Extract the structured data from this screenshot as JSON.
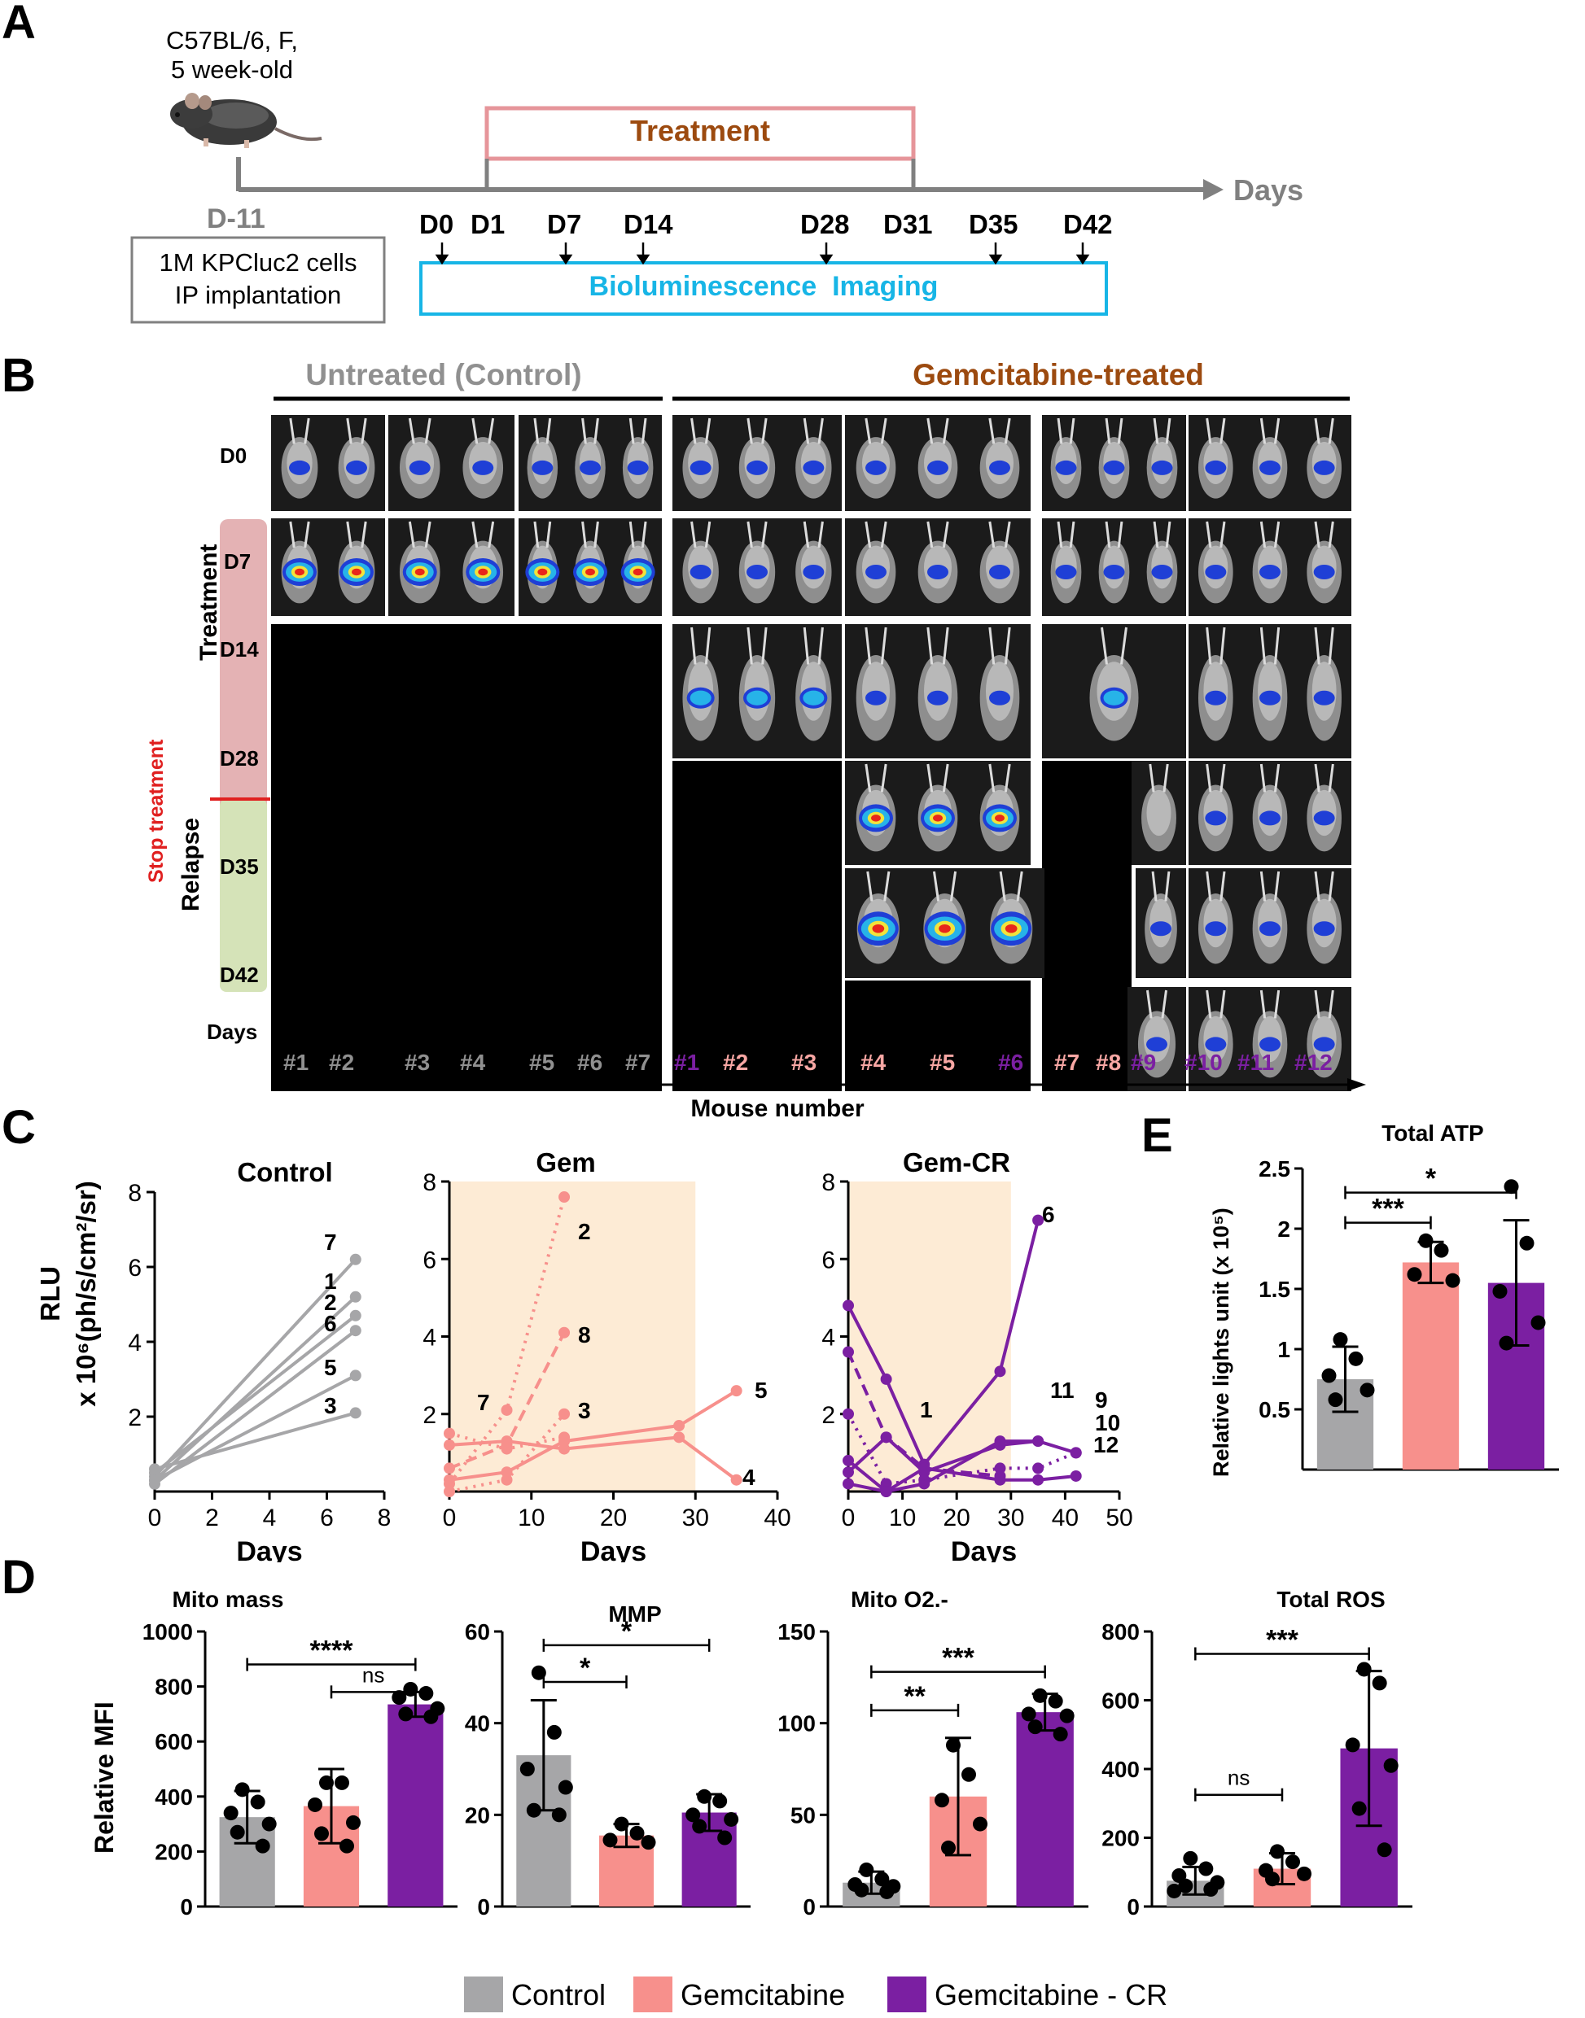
{
  "colors": {
    "control": "#a6a6a8",
    "gem": "#f7908c",
    "gem_light": "#f8a7a4",
    "gem_cr": "#7b1fa2",
    "treatment_label": "#9c4a0f",
    "imaging_blue": "#17b5e6",
    "treatment_box": "#e6959a",
    "stop_red": "#e02020",
    "relapse_green": "#d5e3b8",
    "treatment_pink": "#e4b2b4",
    "shade": "#fdebd5",
    "gray_text": "#808080"
  },
  "panelA": {
    "letter": "A",
    "strain_line1": "C57BL/6, F,",
    "strain_line2": "5 week-old",
    "treatment_label": "Treatment",
    "axis_label": "Days",
    "d_minus": "D-11",
    "implant_line1": "1M KPCluc2 cells",
    "implant_line2": "IP implantation",
    "days": [
      "D0",
      "D1",
      "D7",
      "D14",
      "D28",
      "D31",
      "D35",
      "D42"
    ],
    "imaging_label": "Bioluminescence  Imaging",
    "mouse_icon": "mouse-icon"
  },
  "panelB": {
    "letter": "B",
    "group1": "Untreated (Control)",
    "group2": "Gemcitabine-treated",
    "rows": [
      "D0",
      "D7",
      "D14",
      "D28",
      "D35",
      "D42"
    ],
    "days_label": "Days",
    "treatment_side": "Treatment",
    "relapse_side": "Relapse",
    "stop_label": "Stop treatment",
    "mouse_numbers_control": [
      "#1",
      "#2",
      "#3",
      "#4",
      "#5",
      "#6",
      "#7"
    ],
    "mouse_numbers_gem": [
      {
        "label": "#1",
        "group": "cr"
      },
      {
        "label": "#2",
        "group": "gem"
      },
      {
        "label": "#3",
        "group": "gem"
      },
      {
        "label": "#4",
        "group": "gem"
      },
      {
        "label": "#5",
        "group": "gem"
      },
      {
        "label": "#6",
        "group": "cr"
      },
      {
        "label": "#7",
        "group": "gem"
      },
      {
        "label": "#8",
        "group": "gem"
      },
      {
        "label": "#9",
        "group": "cr"
      },
      {
        "label": "#10",
        "group": "cr"
      },
      {
        "label": "#11",
        "group": "cr"
      },
      {
        "label": "#12",
        "group": "cr"
      }
    ],
    "x_label": "Mouse number"
  },
  "panelC": {
    "letter": "C",
    "ylabel_line1": "RLU",
    "ylabel_line2": "x 10⁶(ph/s/cm²/sr)"
  },
  "panelD": {
    "letter": "D",
    "ylabel": "Relative MFI",
    "legend": [
      "Control",
      "Gemcitabine",
      "Gemcitabine - CR"
    ]
  },
  "panelE": {
    "letter": "E",
    "ylabel": "Relative lights unit (x 10⁵)"
  },
  "chart_data": [
    {
      "id": "C1",
      "type": "line",
      "title": "Control",
      "xlabel": "Days",
      "xlim": [
        0,
        8
      ],
      "xticks": [
        0,
        2,
        4,
        6,
        8
      ],
      "ylim": [
        0,
        8
      ],
      "yticks": [
        2,
        4,
        6,
        8
      ],
      "series": [
        {
          "name": "7",
          "x": [
            0,
            7
          ],
          "y": [
            0.4,
            6.2
          ],
          "style": "solid"
        },
        {
          "name": "1",
          "x": [
            0,
            7
          ],
          "y": [
            0.3,
            5.2
          ],
          "style": "solid"
        },
        {
          "name": "2",
          "x": [
            0,
            7
          ],
          "y": [
            0.5,
            4.7
          ],
          "style": "solid"
        },
        {
          "name": "6",
          "x": [
            0,
            7
          ],
          "y": [
            0.2,
            4.3
          ],
          "style": "solid"
        },
        {
          "name": "5",
          "x": [
            0,
            7
          ],
          "y": [
            0.3,
            3.1
          ],
          "style": "solid"
        },
        {
          "name": "3",
          "x": [
            0,
            7
          ],
          "y": [
            0.6,
            2.1
          ],
          "style": "solid"
        }
      ]
    },
    {
      "id": "C2",
      "type": "line",
      "title": "Gem",
      "xlabel": "Days",
      "xlim": [
        0,
        40
      ],
      "xticks": [
        0,
        10,
        20,
        30,
        40
      ],
      "ylim": [
        0,
        8
      ],
      "yticks": [
        2,
        4,
        6,
        8
      ],
      "shade": [
        0,
        30
      ],
      "series": [
        {
          "name": "2",
          "x": [
            0,
            7,
            14
          ],
          "y": [
            0.2,
            2.1,
            7.6
          ],
          "style": "dotted"
        },
        {
          "name": "8",
          "x": [
            0,
            7,
            14
          ],
          "y": [
            0.6,
            1.2,
            4.1
          ],
          "style": "dashed"
        },
        {
          "name": "3",
          "x": [
            0,
            7,
            14
          ],
          "y": [
            0.0,
            0.3,
            2.0
          ],
          "style": "dotted"
        },
        {
          "name": "7",
          "x": [
            0,
            7,
            14
          ],
          "y": [
            1.5,
            1.1,
            1.4
          ],
          "style": "dotted"
        },
        {
          "name": "5",
          "x": [
            0,
            7,
            14,
            28,
            35
          ],
          "y": [
            0.3,
            0.5,
            1.3,
            1.7,
            2.6
          ],
          "style": "solid"
        },
        {
          "name": "4",
          "x": [
            0,
            7,
            14,
            28,
            35
          ],
          "y": [
            1.2,
            1.3,
            1.1,
            1.4,
            0.3
          ],
          "style": "solid"
        }
      ]
    },
    {
      "id": "C3",
      "type": "line",
      "title": "Gem-CR",
      "xlabel": "Days",
      "xlim": [
        0,
        50
      ],
      "xticks": [
        0,
        10,
        20,
        30,
        40,
        50
      ],
      "ylim": [
        0,
        8
      ],
      "yticks": [
        2,
        4,
        6,
        8
      ],
      "shade": [
        0,
        30
      ],
      "series": [
        {
          "name": "6",
          "x": [
            0,
            7,
            14,
            28,
            35
          ],
          "y": [
            4.8,
            2.9,
            0.7,
            3.1,
            7.0
          ],
          "style": "solid"
        },
        {
          "name": "1",
          "x": [
            0,
            7,
            14,
            28
          ],
          "y": [
            3.6,
            1.4,
            0.6,
            0.4
          ],
          "style": "dashed"
        },
        {
          "name": "11",
          "x": [
            0,
            7,
            14,
            28,
            35
          ],
          "y": [
            0.8,
            0.0,
            0.2,
            1.3,
            1.3
          ],
          "style": "solid"
        },
        {
          "name": "9",
          "x": [
            0,
            7,
            14,
            28,
            35,
            42
          ],
          "y": [
            0.5,
            1.4,
            0.5,
            1.2,
            1.3,
            1.0
          ],
          "style": "solid"
        },
        {
          "name": "10",
          "x": [
            0,
            7,
            14,
            28,
            35,
            42
          ],
          "y": [
            2.0,
            0.2,
            0.3,
            0.6,
            0.6,
            1.0
          ],
          "style": "dotted"
        },
        {
          "name": "12",
          "x": [
            0,
            7,
            14,
            28,
            35,
            42
          ],
          "y": [
            0.2,
            0.0,
            0.6,
            0.3,
            0.3,
            0.4
          ],
          "style": "solid"
        }
      ]
    },
    {
      "id": "D1",
      "type": "bar",
      "title": "Mito mass",
      "ylabel": "Relative MFI",
      "ylim": [
        0,
        1000
      ],
      "yticks": [
        0,
        200,
        400,
        600,
        800,
        1000
      ],
      "categories": [
        "Control",
        "Gemcitabine",
        "Gemcitabine - CR"
      ],
      "values": [
        325,
        365,
        735
      ],
      "errors": [
        95,
        135,
        45
      ],
      "points": [
        [
          425,
          380,
          340,
          300,
          270,
          220
        ],
        [
          450,
          450,
          370,
          305,
          265,
          220
        ],
        [
          790,
          775,
          760,
          720,
          700,
          690
        ]
      ],
      "sig": [
        {
          "from": 1,
          "to": 2,
          "label": "ns",
          "y": 780
        },
        {
          "from": 0,
          "to": 2,
          "label": "****",
          "y": 880
        }
      ]
    },
    {
      "id": "D2",
      "type": "bar",
      "title": "MMP",
      "ylim": [
        0,
        60
      ],
      "yticks": [
        0,
        20,
        40,
        60
      ],
      "categories": [
        "Control",
        "Gemcitabine",
        "Gemcitabine - CR"
      ],
      "values": [
        33,
        15.5,
        20.5
      ],
      "errors": [
        12,
        2.5,
        4
      ],
      "points": [
        [
          51,
          38,
          30,
          26,
          21,
          20
        ],
        [
          18,
          16,
          14.5,
          14
        ],
        [
          24,
          23,
          20,
          19,
          17.5,
          15
        ]
      ],
      "sig": [
        {
          "from": 0,
          "to": 1,
          "label": "*",
          "y": 49
        },
        {
          "from": 0,
          "to": 2,
          "label": "*",
          "y": 57
        }
      ]
    },
    {
      "id": "D3",
      "type": "bar",
      "title": "Mito O2.-",
      "ylim": [
        0,
        150
      ],
      "yticks": [
        0,
        50,
        100,
        150
      ],
      "categories": [
        "Control",
        "Gemcitabine",
        "Gemcitabine - CR"
      ],
      "values": [
        13,
        60,
        106
      ],
      "errors": [
        6,
        32,
        10
      ],
      "points": [
        [
          20,
          15,
          12,
          11,
          9,
          8
        ],
        [
          88,
          72,
          58,
          45,
          32
        ],
        [
          115,
          112,
          105,
          104,
          98,
          94
        ]
      ],
      "sig": [
        {
          "from": 0,
          "to": 1,
          "label": "**",
          "y": 107
        },
        {
          "from": 0,
          "to": 2,
          "label": "***",
          "y": 128
        }
      ]
    },
    {
      "id": "D4",
      "type": "bar",
      "title": "Total ROS",
      "ylim": [
        0,
        800
      ],
      "yticks": [
        0,
        200,
        400,
        600,
        800
      ],
      "categories": [
        "Control",
        "Gemcitabine",
        "Gemcitabine - CR"
      ],
      "values": [
        75,
        110,
        460
      ],
      "errors": [
        40,
        45,
        225
      ],
      "points": [
        [
          140,
          110,
          90,
          70,
          60,
          50,
          45
        ],
        [
          160,
          130,
          105,
          95,
          80
        ],
        [
          690,
          650,
          470,
          410,
          285,
          165
        ]
      ],
      "sig": [
        {
          "from": 0,
          "to": 1,
          "label": "ns",
          "y": 325
        },
        {
          "from": 0,
          "to": 2,
          "label": "***",
          "y": 735
        }
      ]
    },
    {
      "id": "E",
      "type": "bar",
      "title": "Total ATP",
      "ylabel": "Relative lights unit (x 10⁵)",
      "ylim": [
        0,
        2.5
      ],
      "yticks": [
        0.5,
        1,
        1.5,
        2,
        2.5
      ],
      "categories": [
        "Control",
        "Gemcitabine",
        "Gemcitabine - CR"
      ],
      "values": [
        0.75,
        1.72,
        1.55
      ],
      "errors": [
        0.27,
        0.17,
        0.52
      ],
      "points": [
        [
          1.08,
          0.92,
          0.78,
          0.66,
          0.58
        ],
        [
          1.9,
          1.82,
          1.62,
          1.57
        ],
        [
          2.35,
          1.88,
          1.48,
          1.22,
          1.05
        ]
      ],
      "sig": [
        {
          "from": 0,
          "to": 1,
          "label": "***",
          "y": 2.05
        },
        {
          "from": 0,
          "to": 2,
          "label": "*",
          "y": 2.3
        }
      ]
    }
  ]
}
